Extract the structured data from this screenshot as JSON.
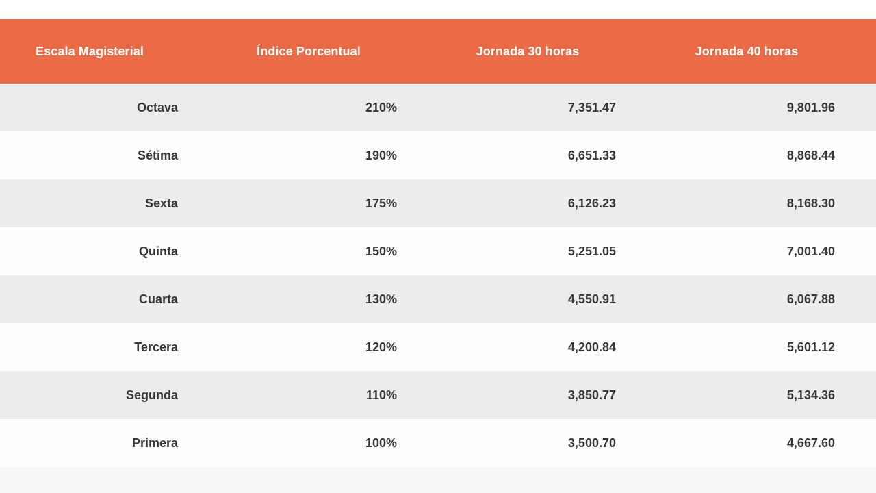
{
  "colors": {
    "header_bg": "#ec6b47",
    "header_fg": "#ffffff",
    "row_alt_bg": "#ebecec",
    "row_bg": "#fefefe",
    "body_fg": "#383838",
    "partial_row_bg": "#f6f7f7",
    "page_bg": "#ffffff"
  },
  "table": {
    "columns": [
      "Escala Magisterial",
      "Índice Porcentual",
      "Jornada 30 horas",
      "Jornada 40 horas"
    ],
    "rows": [
      {
        "cells": [
          "Octava",
          "210%",
          "7,351.47",
          "9,801.96"
        ]
      },
      {
        "cells": [
          "Sétima",
          "190%",
          "6,651.33",
          "8,868.44"
        ]
      },
      {
        "cells": [
          "Sexta",
          "175%",
          "6,126.23",
          "8,168.30"
        ]
      },
      {
        "cells": [
          "Quinta",
          "150%",
          "5,251.05",
          "7,001.40"
        ]
      },
      {
        "cells": [
          "Cuarta",
          "130%",
          "4,550.91",
          "6,067.88"
        ]
      },
      {
        "cells": [
          "Tercera",
          "120%",
          "4,200.84",
          "5,601.12"
        ]
      },
      {
        "cells": [
          "Segunda",
          "110%",
          "3,850.77",
          "5,134.36"
        ]
      },
      {
        "cells": [
          "Primera",
          "100%",
          "3,500.70",
          "4,667.60"
        ]
      }
    ]
  },
  "chart_data": {
    "type": "table",
    "title": "",
    "columns": [
      "Escala Magisterial",
      "Índice Porcentual",
      "Jornada 30 horas",
      "Jornada 40 horas"
    ],
    "rows": [
      [
        "Octava",
        "210%",
        "7,351.47",
        "9,801.96"
      ],
      [
        "Sétima",
        "190%",
        "6,651.33",
        "8,868.44"
      ],
      [
        "Sexta",
        "175%",
        "6,126.23",
        "8,168.30"
      ],
      [
        "Quinta",
        "150%",
        "5,251.05",
        "7,001.40"
      ],
      [
        "Cuarta",
        "130%",
        "4,550.91",
        "6,067.88"
      ],
      [
        "Tercera",
        "120%",
        "4,200.84",
        "5,601.12"
      ],
      [
        "Segunda",
        "110%",
        "3,850.77",
        "5,134.36"
      ],
      [
        "Primera",
        "100%",
        "3,500.70",
        "4,667.60"
      ]
    ],
    "series": [
      {
        "name": "Índice Porcentual (%)",
        "values": [
          210,
          190,
          175,
          150,
          130,
          120,
          110,
          100
        ]
      },
      {
        "name": "Jornada 30 horas",
        "values": [
          7351.47,
          6651.33,
          6126.23,
          5251.05,
          4550.91,
          4200.84,
          3850.77,
          3500.7
        ]
      },
      {
        "name": "Jornada 40 horas",
        "values": [
          9801.96,
          8868.44,
          8168.3,
          7001.4,
          6067.88,
          5601.12,
          5134.36,
          4667.6
        ]
      }
    ],
    "categories": [
      "Octava",
      "Sétima",
      "Sexta",
      "Quinta",
      "Cuarta",
      "Tercera",
      "Segunda",
      "Primera"
    ]
  }
}
